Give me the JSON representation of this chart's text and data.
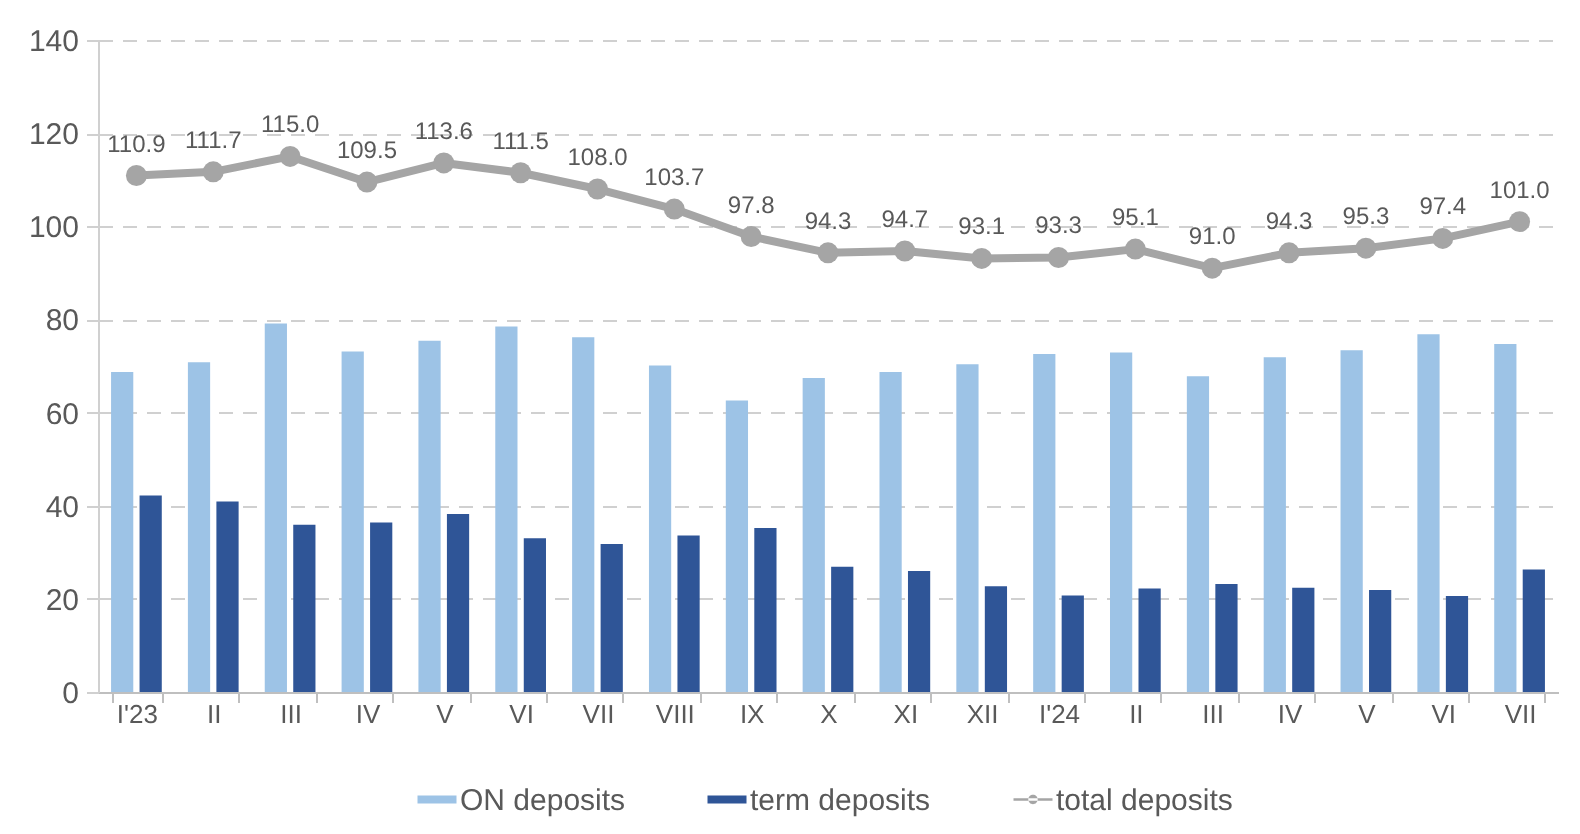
{
  "chart_data": {
    "type": "bar",
    "categories": [
      "I'23",
      "II",
      "III",
      "IV",
      "V",
      "VI",
      "VII",
      "VIII",
      "IX",
      "X",
      "XI",
      "XII",
      "I'24",
      "II",
      "III",
      "IV",
      "V",
      "VI",
      "VII"
    ],
    "series": [
      {
        "name": "ON deposits",
        "color": "#9dc3e6",
        "values": [
          68.7,
          70.8,
          79.1,
          73.1,
          75.4,
          78.5,
          76.2,
          70.1,
          62.6,
          67.4,
          68.7,
          70.4,
          72.6,
          72.9,
          67.8,
          71.9,
          73.4,
          76.8,
          74.7
        ]
      },
      {
        "name": "term deposits",
        "color": "#2f5597",
        "values": [
          42.2,
          40.9,
          35.9,
          36.4,
          38.2,
          33.0,
          31.8,
          33.6,
          35.2,
          26.9,
          26.0,
          22.7,
          20.7,
          22.2,
          23.2,
          22.4,
          21.9,
          20.6,
          26.3
        ]
      },
      {
        "name": "total deposits",
        "type": "line",
        "color": "#a5a5a5",
        "values": [
          110.9,
          111.7,
          115.0,
          109.5,
          113.6,
          111.5,
          108.0,
          103.7,
          97.8,
          94.3,
          94.7,
          93.1,
          93.3,
          95.1,
          91.0,
          94.3,
          95.3,
          97.4,
          101.0
        ],
        "value_labels": [
          "110.9",
          "111.7",
          "115.0",
          "109.5",
          "113.6",
          "111.5",
          "108.0",
          "103.7",
          "97.8",
          "94.3",
          "94.7",
          "93.1",
          "93.3",
          "95.1",
          "91.0",
          "94.3",
          "95.3",
          "97.4",
          "101.0"
        ]
      }
    ],
    "ylim": [
      0,
      140
    ],
    "yticks": [
      0,
      20,
      40,
      60,
      80,
      100,
      120,
      140
    ],
    "grid": "y",
    "legend": "bottom",
    "marker": "circle"
  }
}
